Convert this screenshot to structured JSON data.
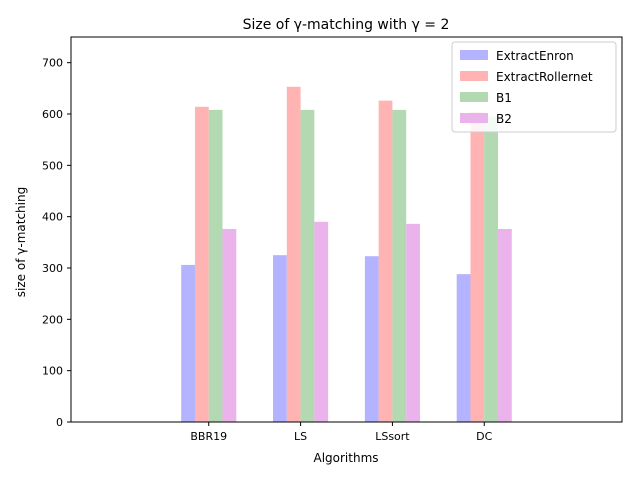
{
  "chart_data": {
    "type": "bar",
    "title": "Size of γ-matching with γ = 2",
    "xlabel": "Algorithms",
    "ylabel": "size of γ-matching",
    "categories": [
      "BBR19",
      "LS",
      "LSsort",
      "DC"
    ],
    "ylim": [
      0,
      750
    ],
    "yticks": [
      0,
      100,
      200,
      300,
      400,
      500,
      600,
      700
    ],
    "xlim": [
      -1.5,
      4.5
    ],
    "grid": false,
    "legend_position": "top-right",
    "series": [
      {
        "name": "ExtractEnron",
        "color": "#b3b3ff",
        "values": [
          306,
          325,
          323,
          288
        ]
      },
      {
        "name": "ExtractRollernet",
        "color": "#ffb3b3",
        "values": [
          614,
          653,
          626,
          604
        ]
      },
      {
        "name": "B1",
        "color": "#b3d9b3",
        "values": [
          608,
          608,
          608,
          595
        ]
      },
      {
        "name": "B2",
        "color": "#ebb3eb",
        "values": [
          376,
          390,
          386,
          376
        ]
      }
    ]
  }
}
